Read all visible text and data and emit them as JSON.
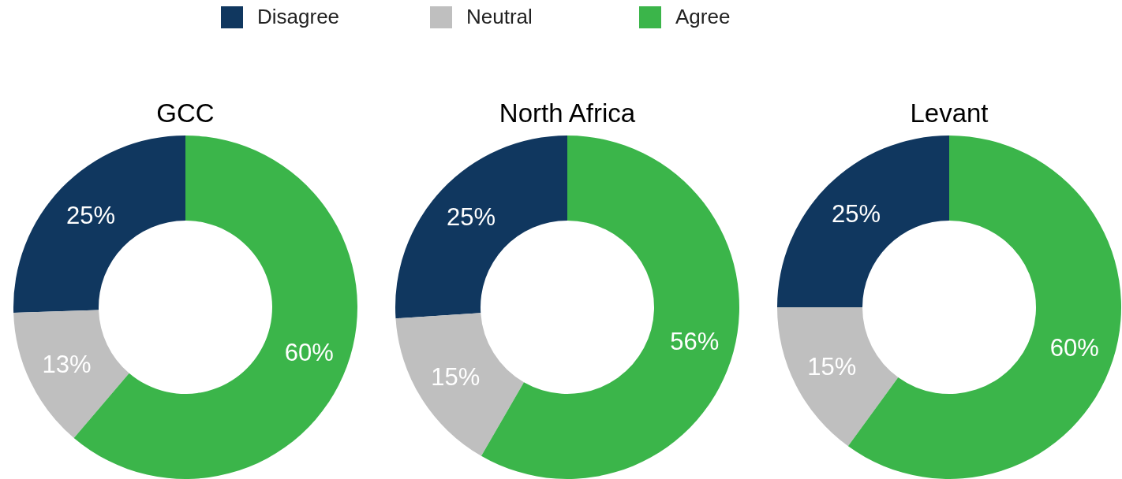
{
  "chart_data": [
    {
      "type": "donut",
      "title": "GCC",
      "categories": [
        "Disagree",
        "Neutral",
        "Agree"
      ],
      "values": [
        25,
        13,
        60
      ],
      "value_labels": [
        "25%",
        "13%",
        "60%"
      ],
      "colors": [
        "#10375f",
        "#bfbfbf",
        "#3bb54a"
      ],
      "legend": "top"
    },
    {
      "type": "donut",
      "title": "North Africa",
      "categories": [
        null,
        null,
        null
      ],
      "values": [
        25,
        15,
        56
      ],
      "value_labels": [
        "25%",
        "15%",
        "56%"
      ],
      "colors": [
        "#10375f",
        "#bfbfbf",
        "#3bb54a"
      ]
    },
    {
      "type": "donut",
      "title": "Levant",
      "categories": [
        null,
        null,
        null
      ],
      "values": [
        25,
        15,
        60
      ],
      "value_labels": [
        "25%",
        "15%",
        "60%"
      ],
      "colors": [
        "#10375f",
        "#bfbfbf",
        "#3bb54a"
      ]
    }
  ]
}
